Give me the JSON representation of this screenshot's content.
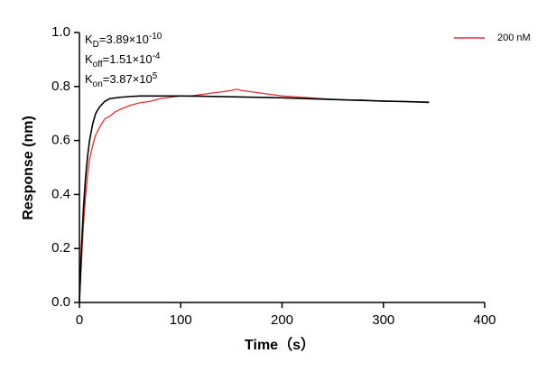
{
  "chart_data": {
    "type": "line",
    "xlabel": "Time（s）",
    "ylabel": "Response (nm)",
    "xlim": [
      0,
      400
    ],
    "xticks": [
      0,
      100,
      200,
      300,
      400
    ],
    "ylim": [
      0,
      1
    ],
    "yticks": [
      {
        "value": 0,
        "label": "0.0"
      },
      0.2,
      0.4,
      0.6,
      0.8,
      {
        "value": 1,
        "label": "1.0"
      }
    ],
    "legend": "top-right",
    "annotations": [
      {
        "symbol": "K",
        "sub": "D",
        "text": "=3.89×10",
        "sup": "-10"
      },
      {
        "symbol": "K",
        "sub": "off",
        "text": "=1.51×10",
        "sup": "-4"
      },
      {
        "symbol": "K",
        "sub": "on",
        "text": "=3.87×10",
        "sup": "5"
      }
    ],
    "series": [
      {
        "name": "200 nM",
        "color": "#e03030",
        "x": [
          0,
          2,
          4,
          6,
          8,
          10,
          13,
          16,
          20,
          25,
          30,
          35,
          40,
          50,
          60,
          70,
          80,
          90,
          100,
          110,
          120,
          130,
          140,
          150,
          155,
          160,
          170,
          180,
          190,
          200,
          220,
          240,
          260,
          280,
          300,
          320,
          345
        ],
        "values": [
          0,
          0.15,
          0.29,
          0.39,
          0.47,
          0.53,
          0.58,
          0.62,
          0.65,
          0.68,
          0.69,
          0.705,
          0.715,
          0.73,
          0.74,
          0.745,
          0.755,
          0.76,
          0.765,
          0.765,
          0.77,
          0.775,
          0.78,
          0.785,
          0.79,
          0.785,
          0.78,
          0.775,
          0.77,
          0.765,
          0.76,
          0.755,
          0.75,
          0.75,
          0.745,
          0.745,
          0.74
        ]
      },
      {
        "color": "#000000",
        "x": [
          0,
          2,
          4,
          6,
          8,
          10,
          13,
          16,
          20,
          25,
          30,
          40,
          50,
          60,
          70,
          80,
          100,
          120,
          150,
          200,
          250,
          300,
          345
        ],
        "values": [
          0,
          0.2,
          0.35,
          0.46,
          0.54,
          0.6,
          0.66,
          0.7,
          0.725,
          0.745,
          0.755,
          0.76,
          0.763,
          0.765,
          0.765,
          0.765,
          0.765,
          0.764,
          0.762,
          0.758,
          0.752,
          0.746,
          0.742
        ]
      }
    ]
  }
}
